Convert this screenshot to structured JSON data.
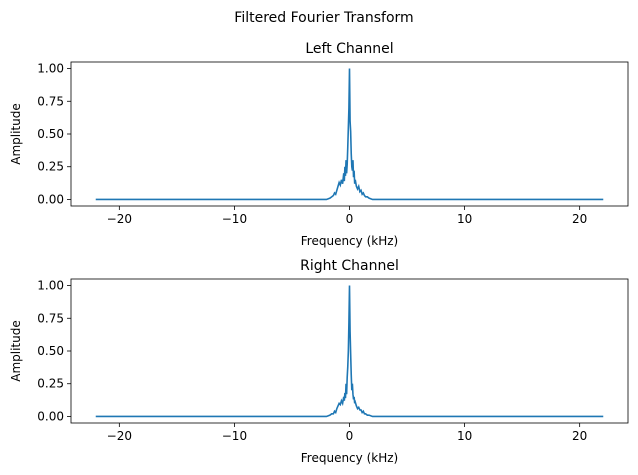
{
  "figure": {
    "title": "Filtered Fourier Transform"
  },
  "chart_data": [
    {
      "type": "line",
      "title": "Left Channel",
      "xlabel": "Frequency (kHz)",
      "ylabel": "Amplitude",
      "xlim": [
        -24.2,
        24.2
      ],
      "ylim": [
        -0.05,
        1.05
      ],
      "xticks": [
        -20,
        -10,
        0,
        10,
        20
      ],
      "xtick_labels": [
        "−20",
        "−10",
        "0",
        "10",
        "20"
      ],
      "yticks": [
        0.0,
        0.25,
        0.5,
        0.75,
        1.0
      ],
      "ytick_labels": [
        "0.00",
        "0.25",
        "0.50",
        "0.75",
        "1.00"
      ],
      "grid": false,
      "color": "#1f77b4",
      "series": [
        {
          "x": [
            -22.05,
            -2.0,
            -1.7,
            -1.55,
            -1.4,
            -1.3,
            -1.2,
            -1.1,
            -1.0,
            -0.9,
            -0.8,
            -0.7,
            -0.6,
            -0.5,
            -0.45,
            -0.4,
            -0.35,
            -0.3,
            -0.25,
            -0.2,
            -0.15,
            -0.1,
            -0.05,
            0.0,
            0.05,
            0.1,
            0.15,
            0.2,
            0.25,
            0.3,
            0.35,
            0.4,
            0.45,
            0.5,
            0.6,
            0.7,
            0.8,
            0.9,
            1.0,
            1.1,
            1.2,
            1.3,
            1.4,
            1.55,
            1.7,
            2.0,
            22.05
          ],
          "y": [
            0.0,
            0.0,
            0.01,
            0.02,
            0.03,
            0.05,
            0.04,
            0.07,
            0.1,
            0.13,
            0.11,
            0.15,
            0.12,
            0.2,
            0.14,
            0.25,
            0.18,
            0.3,
            0.2,
            0.27,
            0.4,
            0.55,
            0.7,
            1.0,
            0.6,
            0.52,
            0.35,
            0.25,
            0.22,
            0.3,
            0.17,
            0.22,
            0.12,
            0.15,
            0.1,
            0.08,
            0.1,
            0.06,
            0.07,
            0.04,
            0.05,
            0.03,
            0.02,
            0.02,
            0.01,
            0.0,
            0.0
          ]
        }
      ]
    },
    {
      "type": "line",
      "title": "Right Channel",
      "xlabel": "Frequency (kHz)",
      "ylabel": "Amplitude",
      "xlim": [
        -24.2,
        24.2
      ],
      "ylim": [
        -0.05,
        1.05
      ],
      "xticks": [
        -20,
        -10,
        0,
        10,
        20
      ],
      "xtick_labels": [
        "−20",
        "−10",
        "0",
        "10",
        "20"
      ],
      "yticks": [
        0.0,
        0.25,
        0.5,
        0.75,
        1.0
      ],
      "ytick_labels": [
        "0.00",
        "0.25",
        "0.50",
        "0.75",
        "1.00"
      ],
      "grid": false,
      "color": "#1f77b4",
      "series": [
        {
          "x": [
            -22.05,
            -2.0,
            -1.7,
            -1.55,
            -1.4,
            -1.3,
            -1.2,
            -1.1,
            -1.0,
            -0.9,
            -0.8,
            -0.7,
            -0.6,
            -0.5,
            -0.45,
            -0.4,
            -0.35,
            -0.3,
            -0.25,
            -0.2,
            -0.15,
            -0.1,
            -0.05,
            0.0,
            0.05,
            0.1,
            0.15,
            0.2,
            0.25,
            0.3,
            0.35,
            0.4,
            0.45,
            0.5,
            0.6,
            0.7,
            0.8,
            0.9,
            1.0,
            1.1,
            1.2,
            1.3,
            1.4,
            1.55,
            1.7,
            2.0,
            22.05
          ],
          "y": [
            0.0,
            0.0,
            0.01,
            0.02,
            0.02,
            0.04,
            0.03,
            0.06,
            0.08,
            0.1,
            0.09,
            0.12,
            0.1,
            0.15,
            0.12,
            0.18,
            0.14,
            0.25,
            0.17,
            0.3,
            0.38,
            0.5,
            0.72,
            1.0,
            0.65,
            0.48,
            0.32,
            0.2,
            0.25,
            0.17,
            0.13,
            0.15,
            0.1,
            0.11,
            0.08,
            0.06,
            0.07,
            0.05,
            0.05,
            0.03,
            0.04,
            0.02,
            0.02,
            0.01,
            0.01,
            0.0,
            0.0
          ]
        }
      ]
    }
  ]
}
